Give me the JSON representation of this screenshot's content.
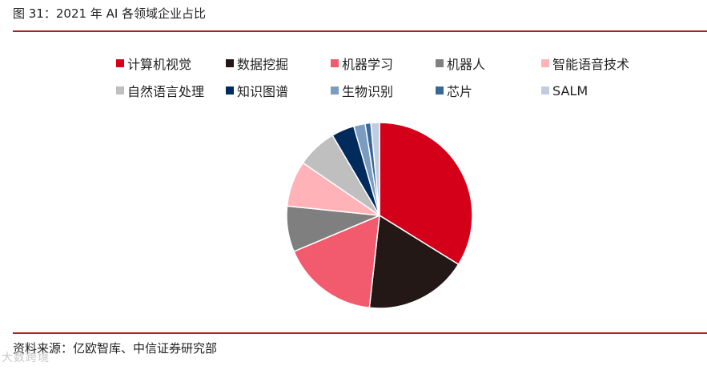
{
  "figure": {
    "title": "图 31：2021 年 AI 各领域企业占比",
    "source": "资料来源：亿欧智库、中信证券研究部"
  },
  "watermark": {
    "text": "大数跨境"
  },
  "chart_data": {
    "type": "pie",
    "categories": [
      "计算机视觉",
      "数据挖掘",
      "机器学习",
      "机器人",
      "智能语音技术",
      "自然语言处理",
      "知识图谱",
      "生物识别",
      "芯片",
      "SALM"
    ],
    "values": [
      34,
      18,
      17,
      8,
      8,
      7,
      4,
      2,
      1,
      1.5
    ],
    "colors": [
      "#d4001a",
      "#231815",
      "#f25a6e",
      "#7f7f7f",
      "#ffb3b8",
      "#bfbfbf",
      "#002b5c",
      "#7a9cc0",
      "#3a6796",
      "#c0cde0"
    ],
    "legend_position": "top"
  }
}
